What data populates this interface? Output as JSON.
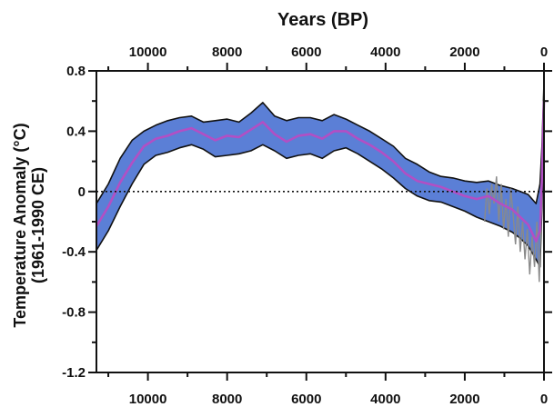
{
  "chart_data": {
    "type": "area",
    "title": "",
    "xlabel": "Years (BP)",
    "ylabel": "Temperature Anomaly (°C)",
    "ylabel_sub": "(1961-1990 CE)",
    "x_reversed": true,
    "xlim": [
      11300,
      0
    ],
    "ylim": [
      -1.2,
      0.8
    ],
    "x_major_ticks": [
      10000,
      8000,
      6000,
      4000,
      2000,
      0
    ],
    "y_major_ticks": [
      0.8,
      0.4,
      0,
      -0.4,
      -0.8,
      -1.2
    ],
    "x_tick_labels": [
      "10000",
      "8000",
      "6000",
      "4000",
      "2000",
      "0"
    ],
    "y_tick_labels": [
      "0.8",
      "0.4",
      "0",
      "-0.4",
      "-0.8",
      "-1.2"
    ],
    "reference_line": {
      "y": 0,
      "style": "dotted"
    },
    "colors": {
      "band": "#5b7fd6",
      "band_edge": "#111111",
      "mean": "#b24fc4",
      "hires": "#8a8a8a",
      "zero": "#111111"
    },
    "series": [
      {
        "role": "mean",
        "x": [
          11300,
          11000,
          10700,
          10400,
          10100,
          9800,
          9500,
          9200,
          8900,
          8600,
          8300,
          8000,
          7700,
          7400,
          7100,
          6800,
          6500,
          6200,
          5900,
          5600,
          5300,
          5000,
          4700,
          4400,
          4100,
          3800,
          3500,
          3200,
          2900,
          2600,
          2300,
          2000,
          1700,
          1400,
          1100,
          800,
          600,
          400,
          200,
          100,
          50,
          0
        ],
        "y": [
          -0.23,
          -0.1,
          0.06,
          0.19,
          0.3,
          0.35,
          0.37,
          0.4,
          0.42,
          0.38,
          0.34,
          0.37,
          0.36,
          0.41,
          0.46,
          0.38,
          0.33,
          0.37,
          0.38,
          0.35,
          0.4,
          0.4,
          0.35,
          0.31,
          0.26,
          0.2,
          0.12,
          0.07,
          0.05,
          0.03,
          0.0,
          -0.03,
          -0.05,
          -0.03,
          -0.08,
          -0.12,
          -0.17,
          -0.22,
          -0.33,
          -0.26,
          0.1,
          0.6
        ]
      },
      {
        "role": "upper",
        "x": [
          11300,
          11000,
          10700,
          10400,
          10100,
          9800,
          9500,
          9200,
          8900,
          8600,
          8300,
          8000,
          7700,
          7400,
          7100,
          6800,
          6500,
          6200,
          5900,
          5600,
          5300,
          5000,
          4700,
          4400,
          4100,
          3800,
          3500,
          3200,
          2900,
          2600,
          2300,
          2000,
          1700,
          1400,
          1100,
          800,
          600,
          400,
          200,
          100,
          50,
          0
        ],
        "y": [
          -0.08,
          0.05,
          0.22,
          0.34,
          0.4,
          0.44,
          0.47,
          0.49,
          0.5,
          0.46,
          0.47,
          0.48,
          0.46,
          0.52,
          0.59,
          0.5,
          0.47,
          0.49,
          0.49,
          0.47,
          0.51,
          0.48,
          0.44,
          0.4,
          0.35,
          0.3,
          0.22,
          0.18,
          0.13,
          0.1,
          0.09,
          0.07,
          0.06,
          0.07,
          0.04,
          0.02,
          0.0,
          -0.02,
          -0.08,
          0.05,
          0.3,
          0.72
        ]
      },
      {
        "role": "lower",
        "x": [
          11300,
          11000,
          10700,
          10400,
          10100,
          9800,
          9500,
          9200,
          8900,
          8600,
          8300,
          8000,
          7700,
          7400,
          7100,
          6800,
          6500,
          6200,
          5900,
          5600,
          5300,
          5000,
          4700,
          4400,
          4100,
          3800,
          3500,
          3200,
          2900,
          2600,
          2300,
          2000,
          1700,
          1400,
          1100,
          800,
          600,
          400,
          200,
          100,
          50,
          0
        ],
        "y": [
          -0.39,
          -0.26,
          -0.1,
          0.05,
          0.18,
          0.24,
          0.26,
          0.29,
          0.31,
          0.28,
          0.23,
          0.24,
          0.25,
          0.27,
          0.31,
          0.27,
          0.22,
          0.24,
          0.25,
          0.22,
          0.27,
          0.29,
          0.25,
          0.2,
          0.15,
          0.09,
          0.02,
          -0.03,
          -0.06,
          -0.07,
          -0.1,
          -0.13,
          -0.17,
          -0.2,
          -0.23,
          -0.27,
          -0.31,
          -0.36,
          -0.45,
          -0.5,
          -0.1,
          0.45
        ]
      },
      {
        "role": "high-resolution",
        "x": [
          1500,
          1440,
          1380,
          1320,
          1260,
          1200,
          1140,
          1080,
          1020,
          960,
          900,
          840,
          780,
          720,
          660,
          600,
          540,
          480,
          420,
          360,
          300,
          240,
          180,
          120,
          60,
          0
        ],
        "y": [
          -0.2,
          0.02,
          -0.15,
          0.05,
          -0.08,
          0.1,
          -0.2,
          0.05,
          -0.25,
          -0.05,
          -0.3,
          0.02,
          -0.15,
          -0.35,
          -0.1,
          -0.4,
          -0.2,
          -0.45,
          -0.25,
          -0.55,
          -0.3,
          -0.5,
          -0.2,
          -0.6,
          -0.1,
          0.65
        ]
      }
    ]
  }
}
